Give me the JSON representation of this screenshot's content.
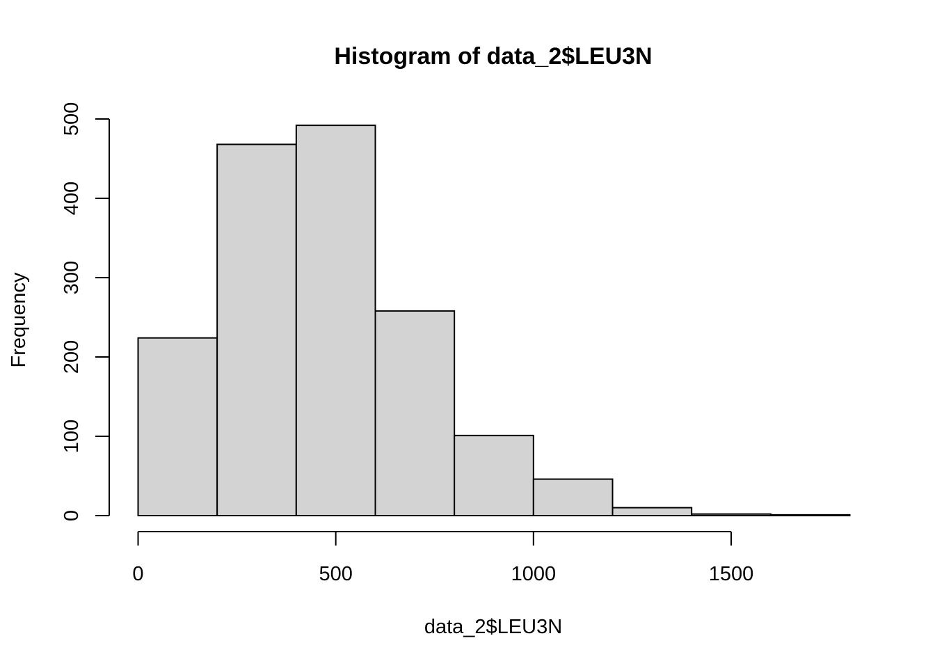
{
  "chart_data": {
    "type": "bar",
    "title": "Histogram of data_2$LEU3N",
    "xlabel": "data_2$LEU3N",
    "ylabel": "Frequency",
    "bin_edges": [
      0,
      200,
      400,
      600,
      800,
      1000,
      1200,
      1400,
      1600,
      1800
    ],
    "values": [
      224,
      468,
      492,
      258,
      101,
      46,
      10,
      2,
      1
    ],
    "xlim": [
      0,
      1800
    ],
    "ylim": [
      0,
      500
    ],
    "x_ticks": [
      0,
      500,
      1000,
      1500
    ],
    "x_tick_labels": [
      "0",
      "500",
      "1000",
      "1500"
    ],
    "y_ticks": [
      0,
      100,
      200,
      300,
      400,
      500
    ],
    "y_tick_labels": [
      "0",
      "100",
      "200",
      "300",
      "400",
      "500"
    ],
    "bar_color": "#d3d3d3",
    "edge_color": "#000000",
    "grid": false,
    "legend": "none"
  }
}
